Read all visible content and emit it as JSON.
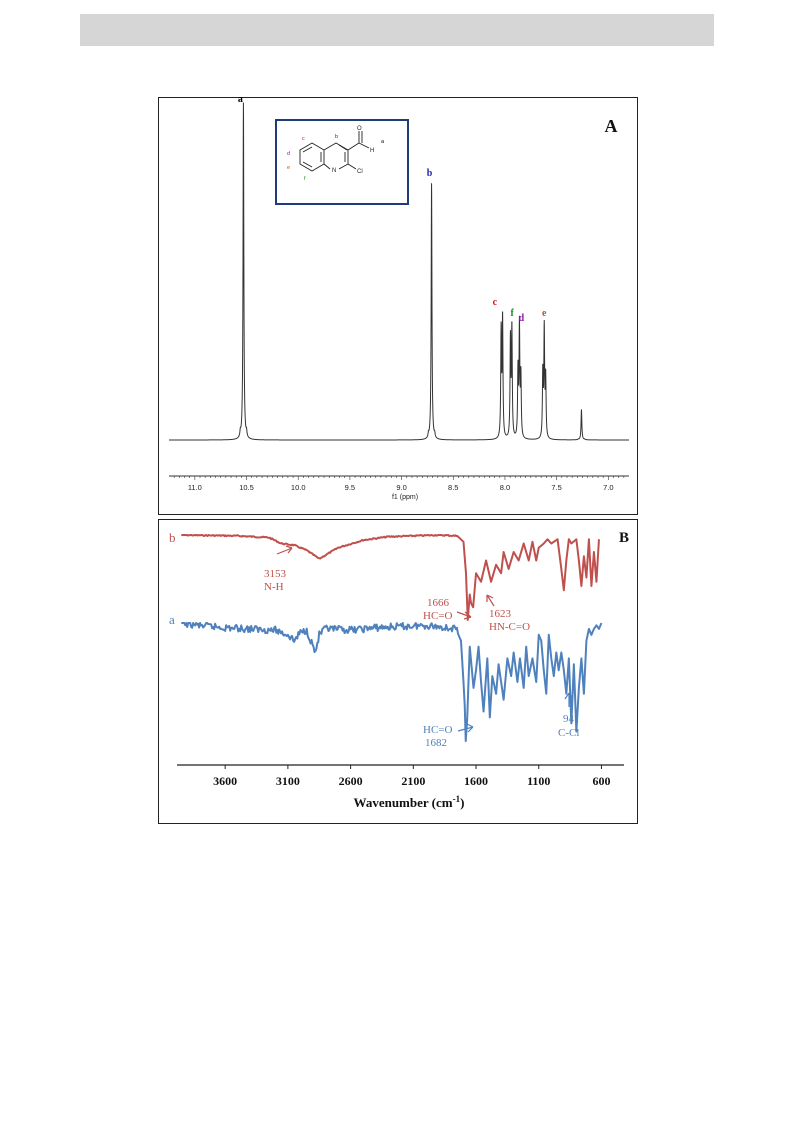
{
  "colors": {
    "header_bar": "#d6d6d6",
    "nmr_line": "#333333",
    "ir_series_b": "#c0504d",
    "ir_series_a": "#4f81bd",
    "structure_frame": "#1f3c7a",
    "letter_a": "#000000",
    "letter_b": "#1f1fb0",
    "letter_c": "#d01818",
    "letter_d": "#9020b0",
    "letter_e": "#c05020",
    "letter_f": "#109020"
  },
  "chart_data": [
    {
      "type": "line",
      "panel_label": "A",
      "xlabel": "f1 (ppm)",
      "x_ticks": [
        "11.0",
        "10.5",
        "10.0",
        "9.5",
        "9.0",
        "8.5",
        "8.0",
        "7.5",
        "7.0"
      ],
      "xlim": [
        11.25,
        6.8
      ],
      "x_reversed": true,
      "peaks": [
        {
          "label": "a",
          "ppm": 10.53,
          "relative_height": 1.0,
          "multiplicity": "singlet"
        },
        {
          "label": "b",
          "ppm": 8.71,
          "relative_height": 0.76,
          "multiplicity": "singlet"
        },
        {
          "label": "c",
          "ppm": 8.03,
          "relative_height": 0.37,
          "multiplicity": "doublet"
        },
        {
          "label": "f",
          "ppm": 7.94,
          "relative_height": 0.34,
          "multiplicity": "doublet"
        },
        {
          "label": "d",
          "ppm": 7.86,
          "relative_height": 0.33,
          "multiplicity": "triplet"
        },
        {
          "label": "e",
          "ppm": 7.62,
          "relative_height": 0.32,
          "multiplicity": "triplet"
        },
        {
          "label": "",
          "ppm": 7.26,
          "relative_height": 0.09,
          "multiplicity": "singlet"
        }
      ],
      "structure": {
        "atom_labels": {
          "oxygen": "O",
          "hydrogen": "H",
          "nitrogen": "N",
          "chlorine": "Cl"
        },
        "position_letters": [
          "a",
          "b",
          "c",
          "d",
          "e",
          "f"
        ]
      }
    },
    {
      "type": "line",
      "panel_label": "B",
      "xlabel_main": "Wavenumber (cm",
      "xlabel_sup": "-1",
      "xlabel_end": ")",
      "x_ticks": [
        "3600",
        "3100",
        "2600",
        "2100",
        "1600",
        "1100",
        "600"
      ],
      "xlim": [
        4000,
        500
      ],
      "series": [
        {
          "name": "b",
          "annotations": [
            {
              "wavenumber": "3153",
              "group": "N-H"
            },
            {
              "wavenumber": "1666",
              "group": "HC=O"
            },
            {
              "wavenumber": "1623",
              "group": "HN-C=O"
            }
          ],
          "x": [
            3950,
            3500,
            3250,
            3153,
            3050,
            2950,
            2850,
            2700,
            2500,
            2300,
            2100,
            1900,
            1750,
            1700,
            1680,
            1666,
            1650,
            1640,
            1623,
            1600,
            1560,
            1520,
            1480,
            1440,
            1400,
            1380,
            1340,
            1300,
            1260,
            1220,
            1180,
            1150,
            1120,
            1100,
            1060,
            1030,
            1000,
            980,
            950,
            920,
            900,
            880,
            860,
            840,
            800,
            780,
            760,
            740,
            720,
            700,
            680,
            660,
            640,
            620
          ],
          "y": [
            0.0,
            0.01,
            0.03,
            0.1,
            0.12,
            0.18,
            0.28,
            0.15,
            0.06,
            0.02,
            0.01,
            0.0,
            0.01,
            0.08,
            0.45,
            1.0,
            0.7,
            0.8,
            0.85,
            0.45,
            0.55,
            0.3,
            0.55,
            0.35,
            0.45,
            0.2,
            0.4,
            0.2,
            0.3,
            0.1,
            0.3,
            0.08,
            0.3,
            0.15,
            0.1,
            0.05,
            0.1,
            0.08,
            0.05,
            0.4,
            0.65,
            0.3,
            0.05,
            0.1,
            0.05,
            0.3,
            0.6,
            0.25,
            0.5,
            0.05,
            0.6,
            0.2,
            0.55,
            0.05
          ]
        },
        {
          "name": "a",
          "annotations": [
            {
              "wavenumber": "1682",
              "group": "HC=O"
            },
            {
              "wavenumber": "941",
              "group": "C-Cl"
            }
          ],
          "x": [
            3950,
            3800,
            3600,
            3400,
            3200,
            3100,
            3050,
            3000,
            2950,
            2880,
            2850,
            2800,
            2600,
            2400,
            2200,
            2000,
            1900,
            1760,
            1720,
            1700,
            1690,
            1682,
            1670,
            1650,
            1620,
            1600,
            1580,
            1560,
            1540,
            1510,
            1490,
            1470,
            1440,
            1420,
            1380,
            1350,
            1320,
            1300,
            1270,
            1250,
            1220,
            1200,
            1180,
            1150,
            1120,
            1100,
            1080,
            1060,
            1040,
            1020,
            1000,
            980,
            960,
            941,
            920,
            900,
            880,
            860,
            840,
            820,
            800,
            780,
            760,
            740,
            720,
            700,
            680,
            660,
            640,
            620,
            600
          ],
          "y": [
            0.0,
            0.02,
            0.04,
            0.05,
            0.06,
            0.1,
            0.15,
            0.08,
            0.06,
            0.25,
            0.1,
            0.05,
            0.06,
            0.04,
            0.03,
            0.02,
            0.03,
            0.05,
            0.15,
            0.5,
            0.7,
            1.0,
            0.8,
            0.2,
            0.55,
            0.4,
            0.2,
            0.5,
            0.75,
            0.3,
            0.8,
            0.45,
            0.6,
            0.35,
            0.65,
            0.3,
            0.45,
            0.25,
            0.5,
            0.3,
            0.55,
            0.2,
            0.45,
            0.3,
            0.5,
            0.1,
            0.15,
            0.4,
            0.6,
            0.1,
            0.3,
            0.45,
            0.25,
            0.4,
            0.25,
            0.4,
            0.6,
            0.3,
            0.85,
            0.35,
            0.92,
            0.55,
            0.3,
            0.6,
            0.15,
            0.05,
            0.1,
            0.05,
            0.02,
            0.05,
            0.0
          ]
        }
      ]
    }
  ]
}
